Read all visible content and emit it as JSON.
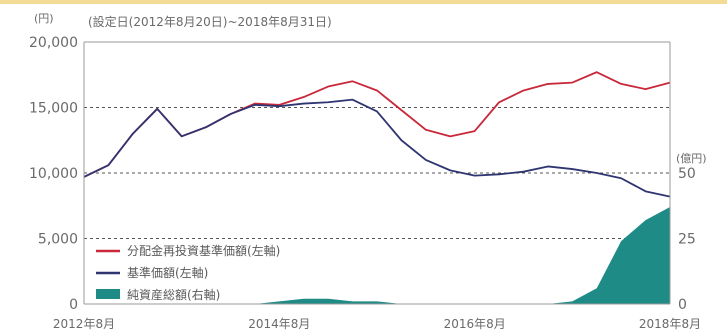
{
  "chart_data": {
    "type": "line",
    "title": "",
    "subtitle": "(設定日(2012年8月20日)~2018年8月31日)",
    "left_axis": {
      "unit": "(円)",
      "ylim": [
        0,
        20000
      ],
      "ticks": [
        0,
        5000,
        10000,
        15000,
        20000
      ],
      "tick_labels": [
        "0",
        "5,000",
        "10,000",
        "15,000",
        "20,000"
      ]
    },
    "right_axis": {
      "unit": "(億円)",
      "ylim": [
        0,
        100
      ],
      "ticks": [
        0,
        25,
        50
      ],
      "tick_labels": [
        "0",
        "25",
        "50"
      ]
    },
    "x_axis": {
      "tick_labels": [
        "2012年8月",
        "2014年8月",
        "2016年8月",
        "2018年8月"
      ]
    },
    "x": [
      "2012-08",
      "2012-11",
      "2013-02",
      "2013-05",
      "2013-08",
      "2013-11",
      "2014-02",
      "2014-05",
      "2014-08",
      "2014-11",
      "2015-02",
      "2015-05",
      "2015-08",
      "2015-11",
      "2016-02",
      "2016-05",
      "2016-08",
      "2016-11",
      "2017-02",
      "2017-05",
      "2017-08",
      "2017-11",
      "2018-02",
      "2018-05",
      "2018-08"
    ],
    "grid": "horizontal dashed",
    "legend_position": "bottom-left",
    "series": [
      {
        "name": "分配金再投資基準価額(左軸)",
        "color": "#c8283a",
        "axis": "left",
        "values": [
          9700,
          10600,
          13000,
          14900,
          12800,
          13500,
          14500,
          15300,
          15200,
          15800,
          16600,
          17000,
          16300,
          14800,
          13300,
          12800,
          13200,
          15400,
          16300,
          16800,
          16900,
          17700,
          16800,
          16400,
          16900
        ]
      },
      {
        "name": "基準価額(左軸)",
        "color": "#2e3570",
        "axis": "left",
        "values": [
          9700,
          10600,
          13000,
          14900,
          12800,
          13500,
          14500,
          15200,
          15100,
          15300,
          15400,
          15600,
          14700,
          12500,
          11000,
          10200,
          9800,
          9900,
          10100,
          10500,
          10300,
          10000,
          9600,
          8600,
          8200
        ]
      },
      {
        "name": "純資産総額(右軸)",
        "color": "#1e8b86",
        "axis": "right",
        "type": "area",
        "values": [
          0,
          0,
          0,
          0,
          0,
          0,
          0,
          0,
          1,
          2,
          2,
          1,
          1,
          0,
          0,
          0,
          0,
          0,
          0,
          0,
          1,
          6,
          24,
          32,
          37
        ]
      }
    ]
  }
}
